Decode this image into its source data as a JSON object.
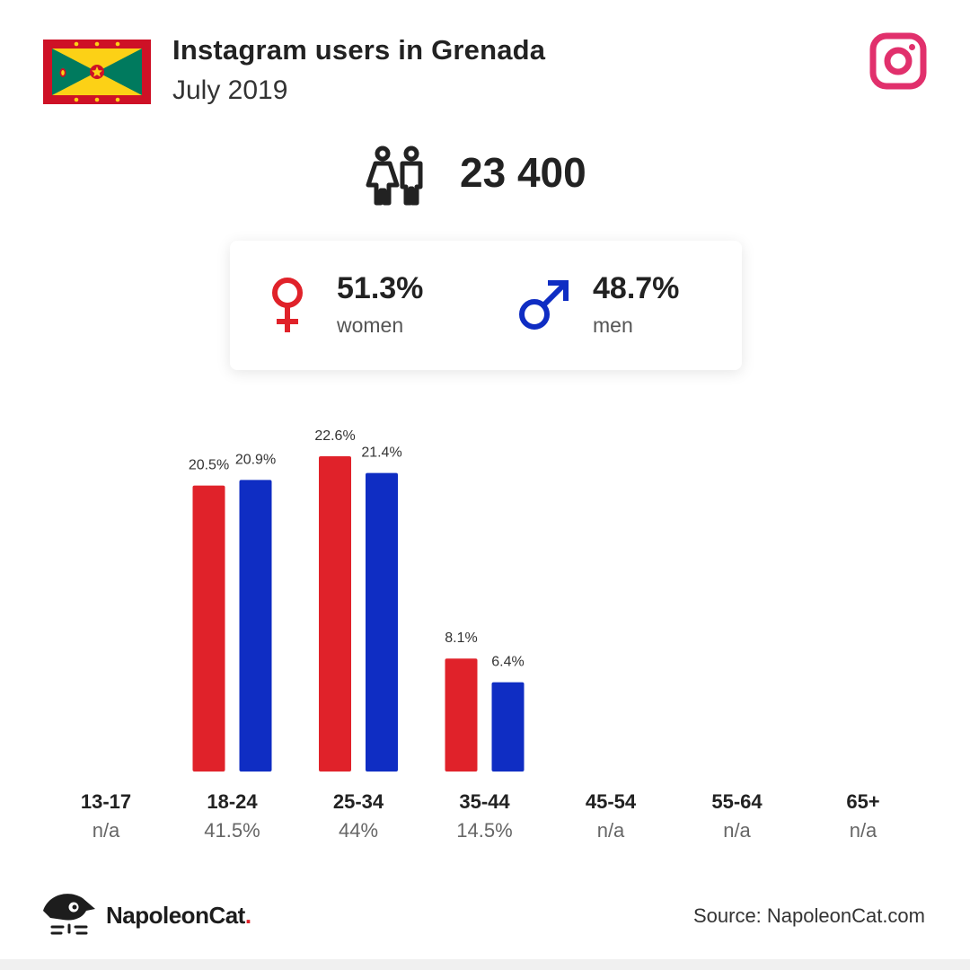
{
  "header": {
    "title": "Instagram users in Grenada",
    "subtitle": "July 2019",
    "flag_icon": "grenada-flag",
    "platform_icon": "instagram-icon"
  },
  "total": {
    "value": "23 400",
    "icon": "users-icon"
  },
  "gender": {
    "women": {
      "value": "51.3%",
      "label": "women",
      "color": "#e0222a"
    },
    "men": {
      "value": "48.7%",
      "label": "men",
      "color": "#0f2dc3"
    }
  },
  "chart_data": {
    "type": "bar",
    "categories": [
      "13-17",
      "18-24",
      "25-34",
      "35-44",
      "45-54",
      "55-64",
      "65+"
    ],
    "category_totals": [
      "n/a",
      "41.5%",
      "44%",
      "14.5%",
      "n/a",
      "n/a",
      "n/a"
    ],
    "series": [
      {
        "name": "women",
        "color": "#e0222a",
        "values": [
          null,
          20.5,
          22.6,
          8.1,
          null,
          null,
          null
        ],
        "labels": [
          "",
          "20.5%",
          "22.6%",
          "8.1%",
          "",
          "",
          ""
        ]
      },
      {
        "name": "men",
        "color": "#0f2dc3",
        "values": [
          null,
          20.9,
          21.4,
          6.4,
          null,
          null,
          null
        ],
        "labels": [
          "",
          "20.9%",
          "21.4%",
          "6.4%",
          "",
          "",
          ""
        ]
      }
    ],
    "ylim": [
      0,
      22.6
    ],
    "grid": false,
    "legend": "none"
  },
  "footer": {
    "brand_name": "NapoleonCat",
    "brand_dot": ".",
    "source": "Source: NapoleonCat.com"
  }
}
